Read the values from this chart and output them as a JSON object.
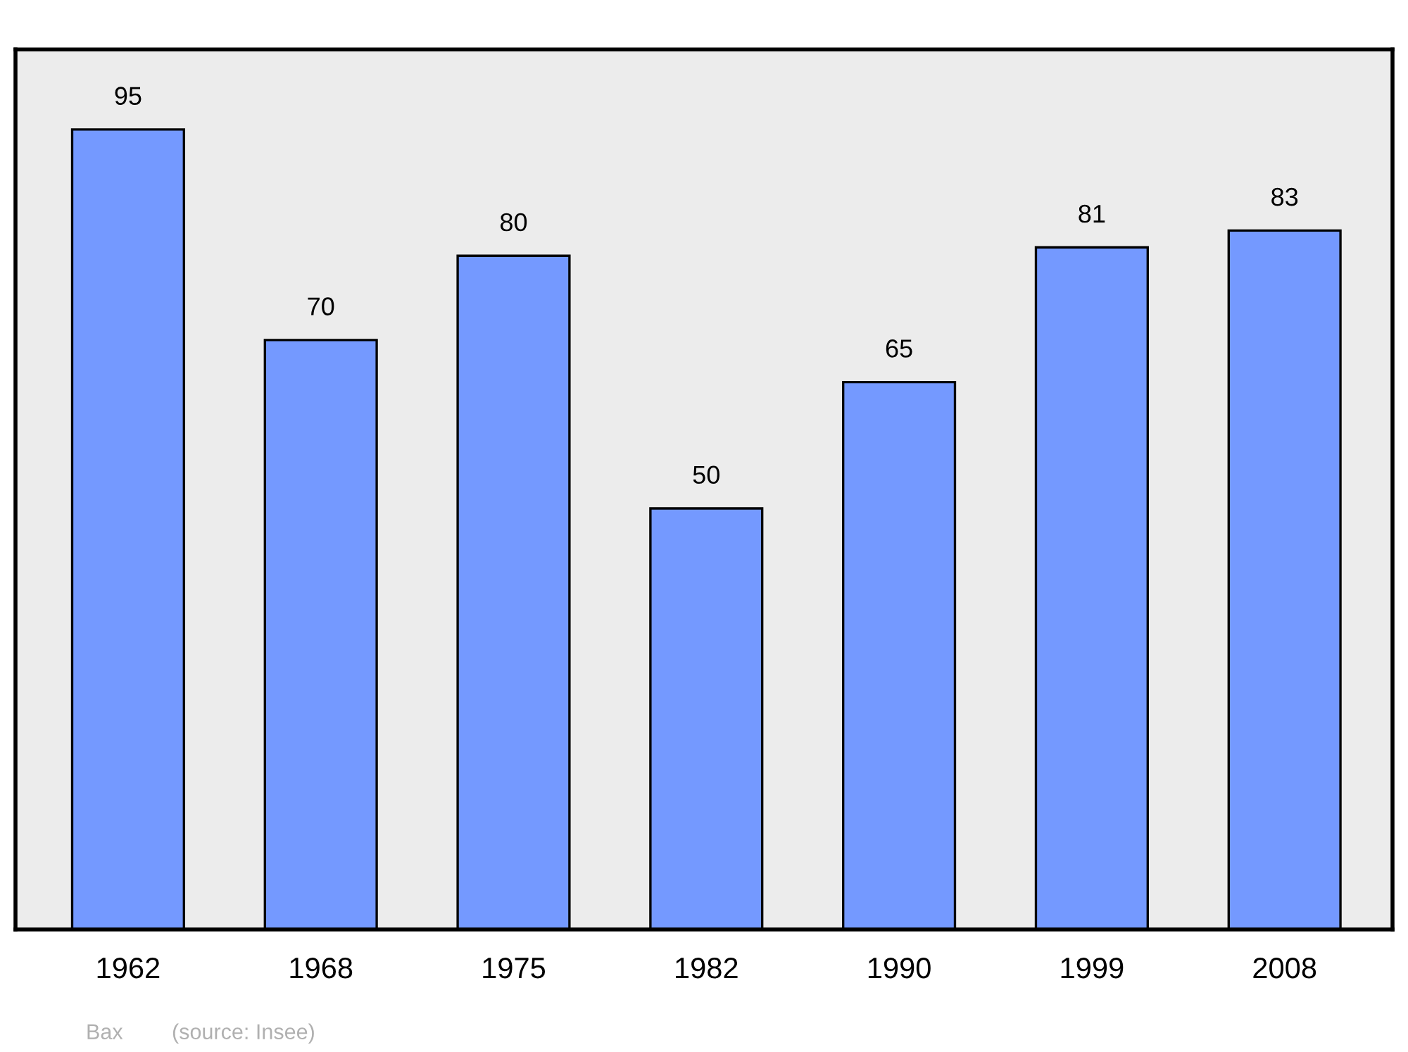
{
  "chart_data": {
    "type": "bar",
    "categories": [
      "1962",
      "1968",
      "1975",
      "1982",
      "1990",
      "1999",
      "2008"
    ],
    "values": [
      95,
      70,
      80,
      50,
      65,
      81,
      83
    ],
    "color": "#7499ff",
    "ylim": [
      0,
      104.5
    ],
    "data_labels": true,
    "tick_labels": "x",
    "grid": false,
    "legend": false,
    "annotations": [
      "Bax",
      "(source: Insee)"
    ]
  }
}
